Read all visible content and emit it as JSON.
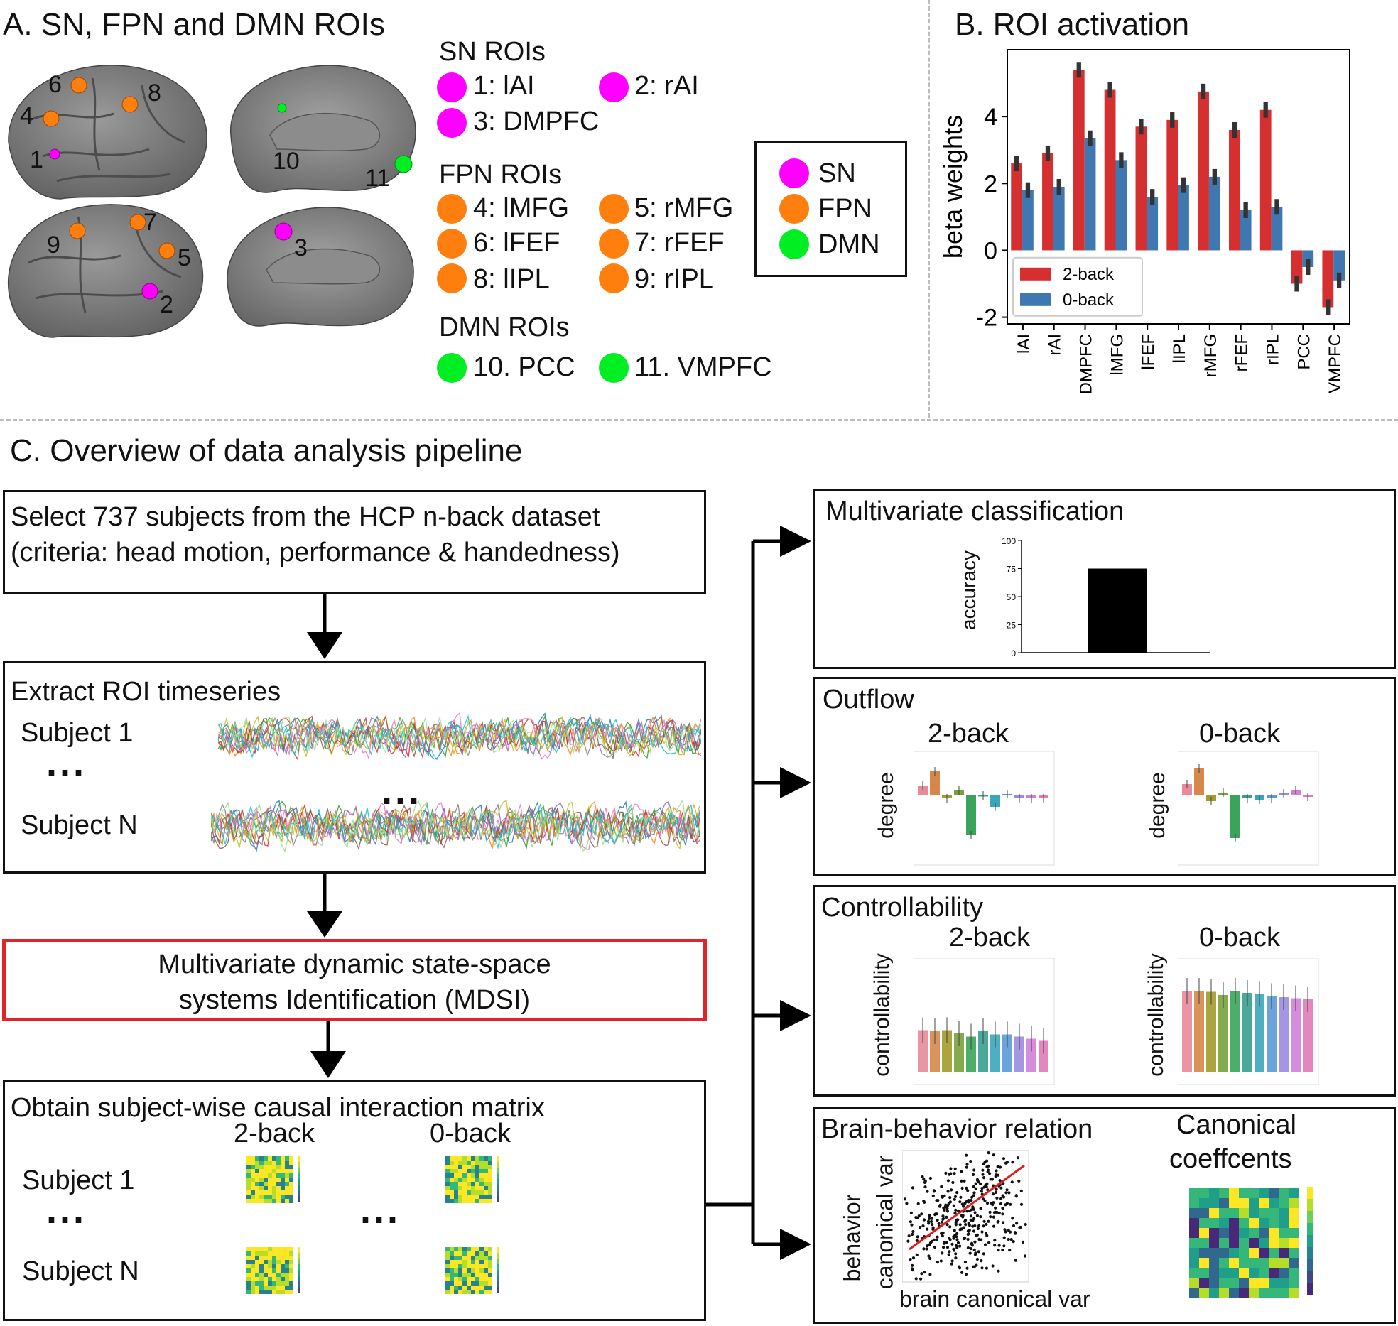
{
  "panel_a": {
    "title": "A. SN, FPN and DMN ROIs",
    "sn_header": "SN ROIs",
    "fpn_header": "FPN ROIs",
    "dmn_header": "DMN ROIs",
    "rois": [
      {
        "label": "1: lAI",
        "color": "#ff00ff"
      },
      {
        "label": "2: rAI",
        "color": "#ff00ff"
      },
      {
        "label": "3: DMPFC",
        "color": "#ff00ff"
      },
      {
        "label": "4: lMFG",
        "color": "#ff7f0e"
      },
      {
        "label": "5: rMFG",
        "color": "#ff7f0e"
      },
      {
        "label": "6: lFEF",
        "color": "#ff7f0e"
      },
      {
        "label": "7: rFEF",
        "color": "#ff7f0e"
      },
      {
        "label": "8: lIPL",
        "color": "#ff7f0e"
      },
      {
        "label": "9: rIPL",
        "color": "#ff7f0e"
      },
      {
        "label": "10. PCC",
        "color": "#00ee22"
      },
      {
        "label": "11. VMPFC",
        "color": "#00ee22"
      }
    ],
    "legend": [
      {
        "label": "SN",
        "color": "#ff00ff"
      },
      {
        "label": "FPN",
        "color": "#ff7f0e"
      },
      {
        "label": "DMN",
        "color": "#00ee22"
      }
    ],
    "brain_numbers": [
      "6",
      "8",
      "4",
      "1",
      "10",
      "11",
      "7",
      "9",
      "5",
      "2",
      "3"
    ]
  },
  "chart_data": {
    "type": "bar",
    "title": "B. ROI activation",
    "ylabel": "beta weights",
    "xlabel": "",
    "ylim": [
      -2.2,
      6.0
    ],
    "yticks": [
      -2,
      0,
      2,
      4
    ],
    "ytick_labels": [
      "-2",
      "0",
      "2",
      "4"
    ],
    "categories": [
      "lAI",
      "rAI",
      "DMPFC",
      "lMFG",
      "lFEF",
      "lIPL",
      "rMFG",
      "rFEF",
      "rIPL",
      "PCC",
      "VMPFC"
    ],
    "series": [
      {
        "name": "2-back",
        "color": "#d62f2f",
        "values": [
          2.6,
          2.9,
          5.4,
          4.8,
          3.7,
          3.9,
          4.75,
          3.6,
          4.2,
          -1.0,
          -1.7
        ]
      },
      {
        "name": "0-back",
        "color": "#3f78b0",
        "values": [
          1.8,
          1.9,
          3.35,
          2.7,
          1.6,
          1.95,
          2.2,
          1.2,
          1.3,
          -0.5,
          -0.9
        ]
      }
    ],
    "legend_position": "lower-left"
  },
  "panel_c": {
    "title": "C. Overview of data analysis pipeline",
    "select_line1": "Select 737 subjects from the HCP n-back dataset",
    "select_line2": "(criteria: head motion, performance & handedness)",
    "extract_title": "Extract ROI timeseries",
    "subject1": "Subject 1",
    "subjectN": "Subject N",
    "ellipsis": "...",
    "mdsi_line1": "Multivariate dynamic state-space",
    "mdsi_line2": "systems Identification (MDSI)",
    "obtain_title": "Obtain subject-wise causal interaction matrix",
    "two_back": "2-back",
    "zero_back": "0-back"
  },
  "right_panels": {
    "classification": {
      "title": "Multivariate classification",
      "ylabel": "accuracy",
      "yticks": [
        "100",
        "75",
        "50",
        "25",
        "0"
      ],
      "value": 75
    },
    "outflow": {
      "title": "Outflow",
      "two_back": "2-back",
      "zero_back": "0-back",
      "ylabel": "degree"
    },
    "controllability": {
      "title": "Controllability",
      "two_back": "2-back",
      "zero_back": "0-back",
      "ylabel": "controllability"
    },
    "brain_behavior": {
      "title": "Brain-behavior relation",
      "ylabel1": "behavior",
      "ylabel2": "canonical var",
      "xlabel": "brain canonical var",
      "canonical_line1": "Canonical",
      "canonical_line2": "coeffcents"
    }
  }
}
